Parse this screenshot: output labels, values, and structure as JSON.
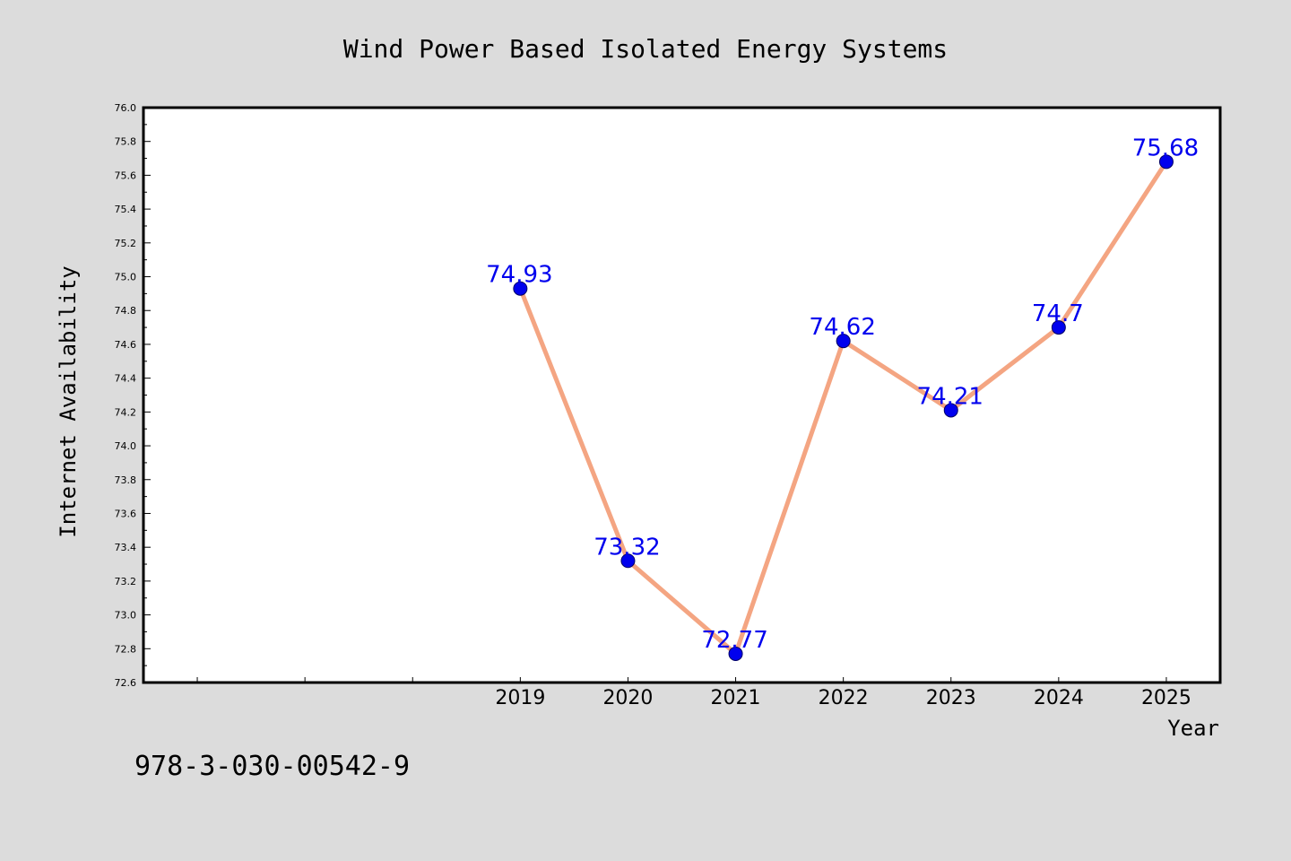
{
  "colors": {
    "background": "#dcdcdc",
    "plot_background": "#ffffff",
    "line": "#f4a582",
    "marker": "#0000ee",
    "data_label": "#0000ee"
  },
  "footnote": "978-3-030-00542-9",
  "chart_data": {
    "type": "line",
    "title": "Wind Power Based Isolated Energy Systems",
    "xlabel": "Year",
    "ylabel": "Internet Availability",
    "x": [
      2019,
      2020,
      2021,
      2022,
      2023,
      2024,
      2025
    ],
    "x_tick_labels": [
      "2019",
      "2020",
      "2021",
      "2022",
      "2023",
      "2024",
      "2025"
    ],
    "xlim": [
      2015.5,
      2025.5
    ],
    "ylim": [
      72.6,
      76.0
    ],
    "y_tick_labels": [
      "72.6",
      "72.8",
      "73.0",
      "73.2",
      "73.4",
      "73.6",
      "73.8",
      "74.0",
      "74.2",
      "74.4",
      "74.6",
      "74.8",
      "75.0",
      "75.2",
      "75.4",
      "75.6",
      "75.8",
      "76.0"
    ],
    "series": [
      {
        "values": [
          74.93,
          73.32,
          72.77,
          74.62,
          74.21,
          74.7,
          75.68
        ],
        "data_labels": [
          "74.93",
          "73.32",
          "72.77",
          "74.62",
          "74.21",
          "74.7",
          "75.68"
        ]
      }
    ],
    "grid": false,
    "legend": "none"
  }
}
